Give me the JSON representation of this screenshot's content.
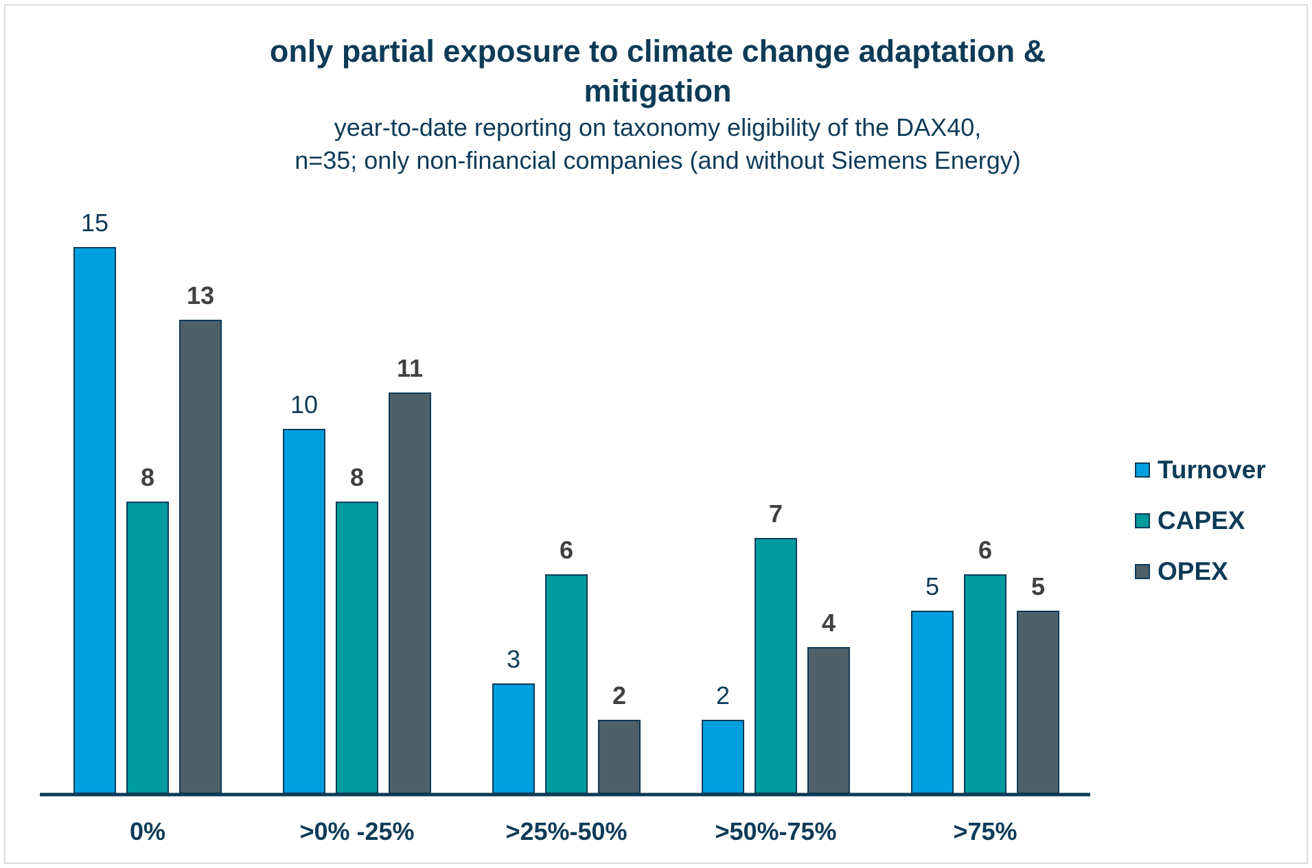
{
  "chart_data": {
    "type": "bar",
    "title": "only partial exposure to climate change adaptation & mitigation",
    "subtitle_lines": [
      "year-to-date reporting on taxonomy eligibility of the DAX40,",
      "n=35; only non-financial companies (and without Siemens Energy)"
    ],
    "categories": [
      "0%",
      ">0% -25%",
      ">25%-50%",
      ">50%-75%",
      ">75%"
    ],
    "series": [
      {
        "name": "Turnover",
        "values": [
          15,
          10,
          3,
          2,
          5
        ],
        "color": "#009fdf",
        "label_color": "#0d3b57",
        "label_bold": false
      },
      {
        "name": "CAPEX",
        "values": [
          8,
          8,
          6,
          7,
          6
        ],
        "color": "#009b9e",
        "label_color": "#404040",
        "label_bold": true
      },
      {
        "name": "OPEX",
        "values": [
          13,
          11,
          2,
          4,
          5
        ],
        "color": "#4f6069",
        "label_color": "#404040",
        "label_bold": true
      }
    ],
    "ylim": [
      0,
      15
    ],
    "grid": false,
    "legend_position": "right",
    "axis_color": "#0d3b57"
  }
}
